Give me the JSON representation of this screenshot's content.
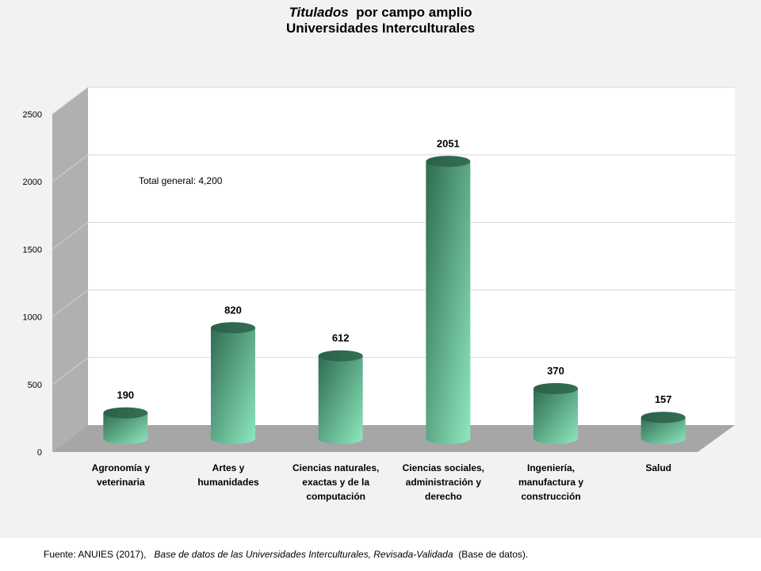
{
  "title": {
    "italic_part": "Titulados",
    "rest_part": "por campo amplio",
    "line2": "Universidades Interculturales"
  },
  "annotation": "Total general: 4,200",
  "footer": {
    "prefix": "Fuente: ANUIES (2017),",
    "italic": "Base de datos de las Universidades  Interculturales, Revisada-Validada",
    "suffix": "(Base de datos)."
  },
  "colors": {
    "bar_dark": "#2e6b4f",
    "bar_light": "#8ee8c0",
    "floor": "#a6a6a6",
    "wall": "#ffffff",
    "side_wall": "#b0b0b0"
  },
  "chart_data": {
    "type": "bar",
    "style": "3d-cylinder",
    "categories": [
      [
        "Agronomía y",
        "veterinaria"
      ],
      [
        "Artes y",
        "humanidades"
      ],
      [
        "Ciencias naturales,",
        "exactas y de la",
        "computación"
      ],
      [
        "Ciencias sociales,",
        "administración y",
        "derecho"
      ],
      [
        "Ingeniería,",
        "manufactura y",
        "construcción"
      ],
      [
        "Salud"
      ]
    ],
    "values": [
      190,
      820,
      612,
      2051,
      370,
      157
    ],
    "data_labels": [
      "190",
      "820",
      "612",
      "2051",
      "370",
      "157"
    ],
    "yticks": [
      0,
      500,
      1000,
      1500,
      2000,
      2500
    ],
    "ylim": [
      0,
      2500
    ],
    "grid": true,
    "legend": "none"
  }
}
